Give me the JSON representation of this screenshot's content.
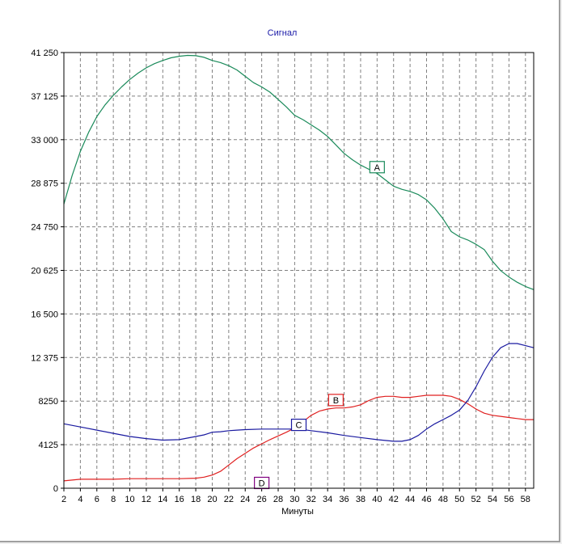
{
  "chart_data": {
    "type": "line",
    "title": "Сигнал",
    "xlabel": "Минуты",
    "ylabel": "",
    "xlim": [
      2,
      59
    ],
    "ylim": [
      0,
      41250
    ],
    "x_ticks": [
      2,
      4,
      6,
      8,
      10,
      12,
      14,
      16,
      18,
      20,
      22,
      24,
      26,
      28,
      30,
      32,
      34,
      36,
      38,
      40,
      42,
      44,
      46,
      48,
      50,
      52,
      54,
      56,
      58
    ],
    "y_ticks": [
      0,
      4125,
      8250,
      12375,
      16500,
      20625,
      24750,
      28875,
      33000,
      37125,
      41250
    ],
    "y_tick_labels": [
      "0",
      "4125",
      "8250",
      "12 375",
      "16 500",
      "20 625",
      "24 750",
      "28 875",
      "33 000",
      "37 125",
      "41 250"
    ],
    "grid": true,
    "series": [
      {
        "name": "A",
        "color": "#1a8a5a",
        "x": [
          2,
          3,
          4,
          5,
          6,
          7,
          8,
          9,
          10,
          11,
          12,
          13,
          14,
          15,
          16,
          17,
          18,
          19,
          20,
          21,
          22,
          23,
          24,
          25,
          26,
          27,
          28,
          29,
          30,
          31,
          32,
          33,
          34,
          35,
          36,
          37,
          38,
          39,
          40,
          41,
          42,
          43,
          44,
          45,
          46,
          47,
          48,
          49,
          50,
          51,
          52,
          53,
          54,
          55,
          56,
          57,
          58,
          59
        ],
        "y": [
          26900,
          29600,
          31900,
          33700,
          35200,
          36300,
          37200,
          38000,
          38700,
          39300,
          39800,
          40200,
          40500,
          40750,
          40900,
          40980,
          40950,
          40800,
          40500,
          40300,
          40000,
          39600,
          39000,
          38400,
          38000,
          37500,
          36800,
          36100,
          35300,
          34900,
          34400,
          33900,
          33300,
          32500,
          31700,
          31100,
          30600,
          30200,
          29800,
          29200,
          28600,
          28300,
          28100,
          27800,
          27300,
          26500,
          25500,
          24300,
          23800,
          23500,
          23100,
          22600,
          21500,
          20600,
          20000,
          19500,
          19100,
          18800
        ]
      },
      {
        "name": "B",
        "color": "#e02020",
        "x": [
          2,
          4,
          6,
          8,
          10,
          12,
          14,
          16,
          18,
          19,
          20,
          21,
          22,
          23,
          24,
          25,
          26,
          27,
          28,
          29,
          30,
          31,
          32,
          33,
          34,
          35,
          36,
          37,
          38,
          39,
          40,
          41,
          42,
          43,
          44,
          45,
          46,
          47,
          48,
          49,
          50,
          51,
          52,
          53,
          54,
          55,
          56,
          57,
          58,
          59
        ],
        "y": [
          700,
          850,
          850,
          850,
          900,
          900,
          900,
          900,
          950,
          1050,
          1250,
          1600,
          2200,
          2800,
          3300,
          3800,
          4200,
          4600,
          4950,
          5300,
          5700,
          6300,
          6900,
          7300,
          7500,
          7600,
          7600,
          7700,
          7900,
          8300,
          8600,
          8700,
          8700,
          8600,
          8600,
          8700,
          8800,
          8800,
          8800,
          8700,
          8400,
          8000,
          7500,
          7100,
          6900,
          6800,
          6700,
          6600,
          6500,
          6500
        ]
      },
      {
        "name": "C",
        "color": "#1a1aa0",
        "x": [
          2,
          4,
          6,
          8,
          10,
          12,
          14,
          16,
          18,
          19,
          20,
          21,
          22,
          23,
          24,
          26,
          28,
          30,
          31,
          32,
          34,
          36,
          38,
          40,
          42,
          43,
          44,
          45,
          46,
          47,
          48,
          49,
          50,
          51,
          52,
          53,
          54,
          55,
          56,
          57,
          58,
          59
        ],
        "y": [
          6100,
          5800,
          5500,
          5200,
          4900,
          4700,
          4550,
          4600,
          4900,
          5050,
          5300,
          5350,
          5450,
          5500,
          5550,
          5600,
          5600,
          5600,
          5550,
          5450,
          5250,
          5000,
          4800,
          4600,
          4450,
          4450,
          4600,
          5000,
          5600,
          6100,
          6500,
          6900,
          7400,
          8300,
          9600,
          11100,
          12400,
          13300,
          13700,
          13700,
          13500,
          13300
        ]
      }
    ],
    "annotations": [
      {
        "label": "A",
        "x": 40,
        "y": 30400,
        "color": "#1a8a5a"
      },
      {
        "label": "B",
        "x": 35,
        "y": 8350,
        "color": "#e02020"
      },
      {
        "label": "C",
        "x": 30.5,
        "y": 6000,
        "color": "#1a1aa0"
      },
      {
        "label": "D",
        "x": 26,
        "y": 500,
        "color": "#800080"
      }
    ]
  }
}
